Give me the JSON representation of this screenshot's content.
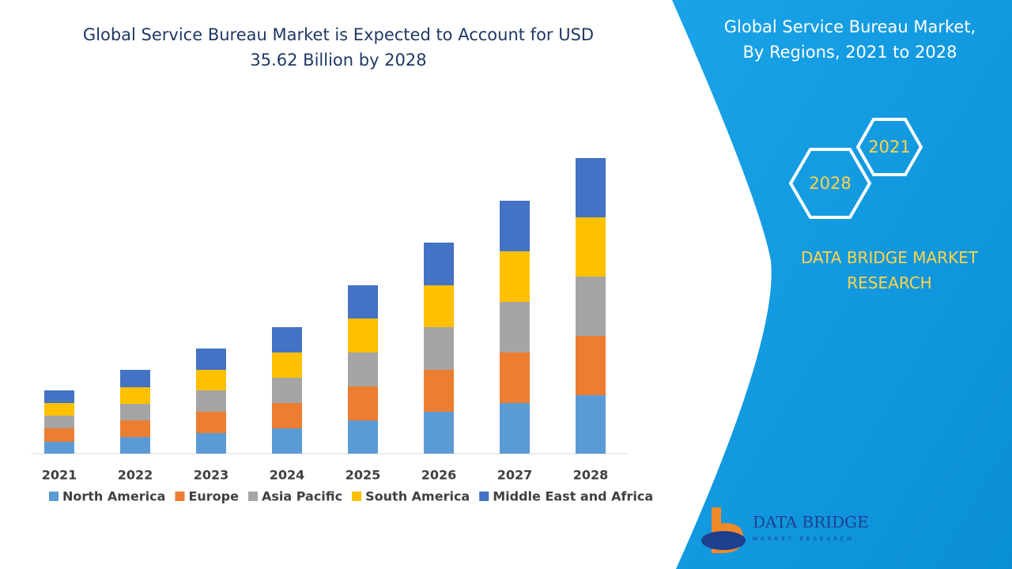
{
  "chart_data": {
    "type": "stacked-bar",
    "title": "Global Service Bureau Market is Expected to Account for USD 35.62 Billion by 2028",
    "categories": [
      "2021",
      "2022",
      "2023",
      "2024",
      "2025",
      "2026",
      "2027",
      "2028"
    ],
    "ylim": [
      0,
      400
    ],
    "series": [
      {
        "name": "North America",
        "color": "#5b9bd5",
        "values": [
          15,
          21,
          26,
          32,
          42,
          53,
          64,
          74
        ]
      },
      {
        "name": "Europe",
        "color": "#ed7d31",
        "values": [
          17,
          21,
          27,
          32,
          43,
          53,
          64,
          75
        ]
      },
      {
        "name": "Asia Pacific",
        "color": "#a5a5a5",
        "values": [
          16,
          21,
          27,
          32,
          43,
          54,
          64,
          75
        ]
      },
      {
        "name": "South America",
        "color": "#ffc000",
        "values": [
          16,
          21,
          26,
          32,
          43,
          53,
          64,
          75
        ]
      },
      {
        "name": "Middle East and Africa",
        "color": "#4472c4",
        "values": [
          16,
          22,
          27,
          32,
          42,
          54,
          64,
          75
        ]
      }
    ]
  },
  "side_panel": {
    "title": "Global Service Bureau Market, By Regions, 2021 to 2028",
    "hex_labels": [
      "2021",
      "2028"
    ],
    "brand": "DATA BRIDGE MARKET RESEARCH",
    "logo_name": "DATA BRIDGE",
    "logo_tagline": "MARKET RESEARCH"
  }
}
